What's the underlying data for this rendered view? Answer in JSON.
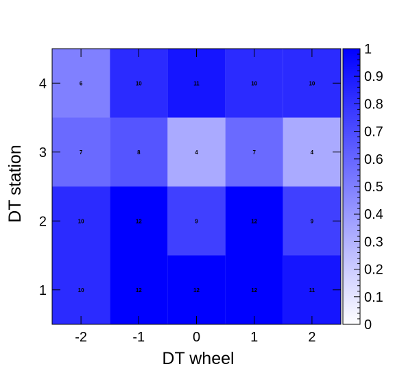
{
  "chart_data": {
    "type": "heatmap",
    "title": "",
    "xlabel": "DT wheel",
    "ylabel": "DT station",
    "x_categories": [
      "-2",
      "-1",
      "0",
      "1",
      "2"
    ],
    "y_categories": [
      "1",
      "2",
      "3",
      "4"
    ],
    "max_count": 12,
    "cells": [
      {
        "x": "-2",
        "y": "1",
        "value": 10
      },
      {
        "x": "-1",
        "y": "1",
        "value": 12
      },
      {
        "x": "0",
        "y": "1",
        "value": 12
      },
      {
        "x": "1",
        "y": "1",
        "value": 12
      },
      {
        "x": "2",
        "y": "1",
        "value": 11
      },
      {
        "x": "-2",
        "y": "2",
        "value": 10
      },
      {
        "x": "-1",
        "y": "2",
        "value": 12
      },
      {
        "x": "0",
        "y": "2",
        "value": 9
      },
      {
        "x": "1",
        "y": "2",
        "value": 12
      },
      {
        "x": "2",
        "y": "2",
        "value": 9
      },
      {
        "x": "-2",
        "y": "3",
        "value": 7
      },
      {
        "x": "-1",
        "y": "3",
        "value": 8
      },
      {
        "x": "0",
        "y": "3",
        "value": 4
      },
      {
        "x": "1",
        "y": "3",
        "value": 7
      },
      {
        "x": "2",
        "y": "3",
        "value": 4
      },
      {
        "x": "-2",
        "y": "4",
        "value": 6
      },
      {
        "x": "-1",
        "y": "4",
        "value": 10
      },
      {
        "x": "0",
        "y": "4",
        "value": 11
      },
      {
        "x": "1",
        "y": "4",
        "value": 10
      },
      {
        "x": "2",
        "y": "4",
        "value": 10
      }
    ],
    "colorscale": {
      "min": 0,
      "max": 1,
      "ticks": [
        "0",
        "0.1",
        "0.2",
        "0.3",
        "0.4",
        "0.5",
        "0.6",
        "0.7",
        "0.8",
        "0.9",
        "1"
      ],
      "low_color": "#ffffff",
      "high_color": "#0000ff"
    },
    "grid": false,
    "legend": "right colorbar"
  }
}
